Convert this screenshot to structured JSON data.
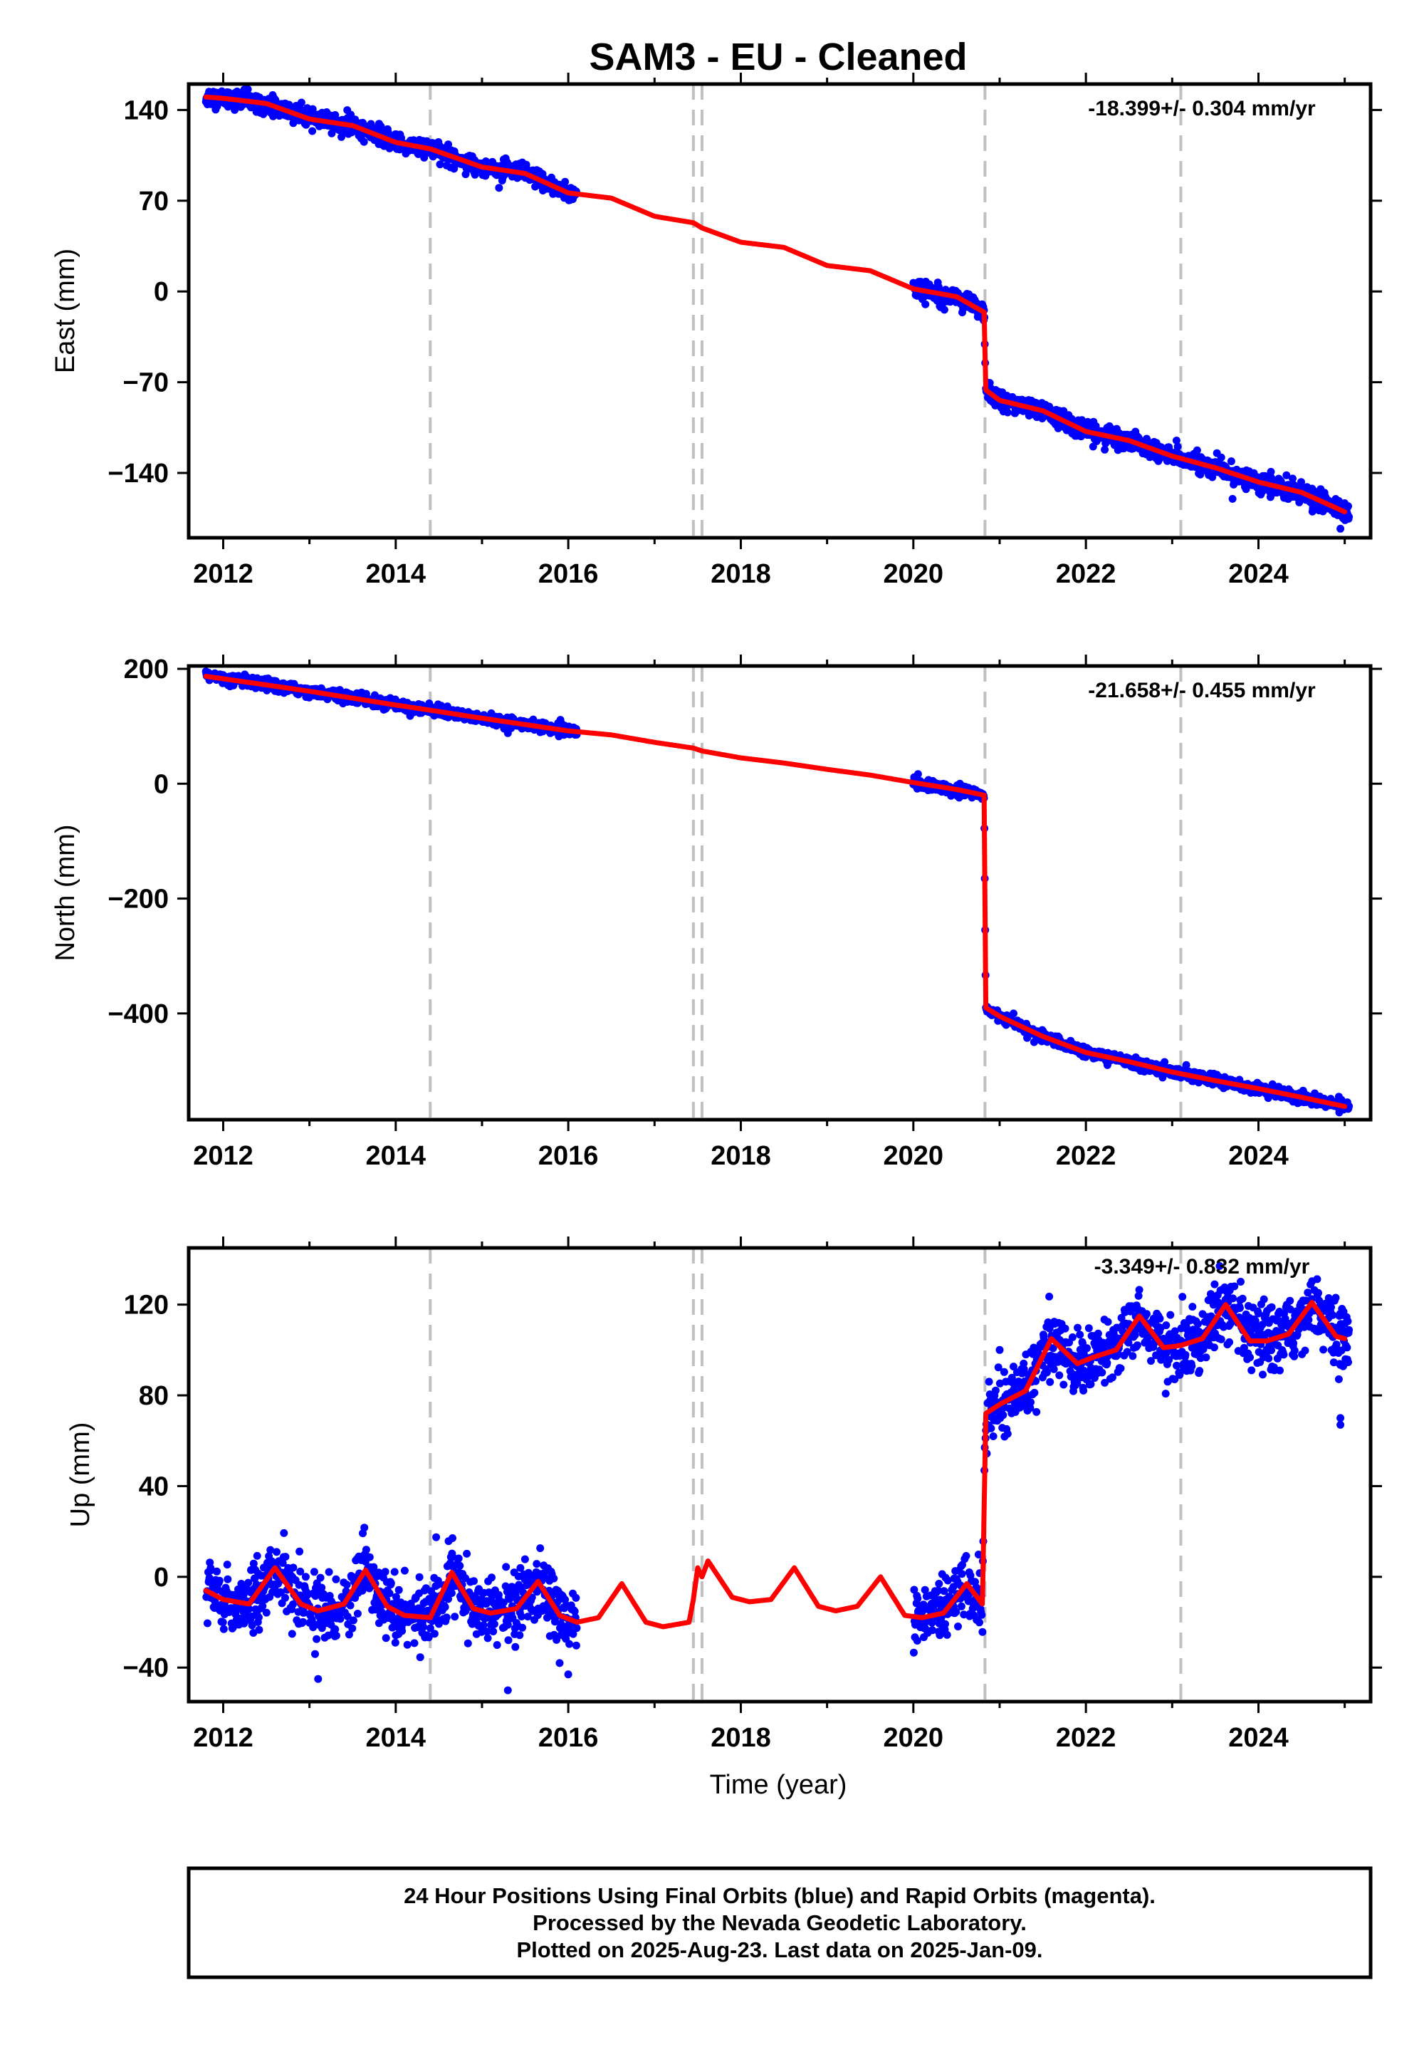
{
  "chart_data": {
    "type": "scatter",
    "title": "SAM3  - EU - Cleaned",
    "xlabel": "Time (year)",
    "xlim": [
      2011.6,
      2025.3
    ],
    "xticks": [
      2012,
      2014,
      2016,
      2018,
      2020,
      2022,
      2024
    ],
    "xtick_labels": [
      "2012",
      "2014",
      "2016",
      "2018",
      "2020",
      "2022",
      "2024"
    ],
    "grid": false,
    "event_lines": [
      2014.4,
      2017.45,
      2017.55,
      2020.83,
      2023.1
    ],
    "colors": {
      "points": "#0000ff",
      "model": "#ff0000",
      "event_lines": "#c0c0c0",
      "frame": "#000000"
    },
    "series_roles": {
      "points": "24 hour daily positions (blue)",
      "model": "model fit (red)"
    },
    "panels": [
      {
        "ylabel": "East (mm)",
        "ylim": [
          -190,
          160
        ],
        "yticks": [
          140,
          70,
          0,
          -70,
          -140
        ],
        "ytick_labels": [
          "140",
          "70",
          "0",
          "−70",
          "−140"
        ],
        "rate": "-18.399+/- 0.304 mm/yr",
        "observed_segments": [
          [
            2011.8,
            2016.1
          ],
          [
            2020.0,
            2025.05
          ]
        ],
        "model": {
          "x": [
            2011.8,
            2012.0,
            2012.5,
            2013.0,
            2013.5,
            2014.0,
            2014.4,
            2015.0,
            2015.5,
            2016.0,
            2016.5,
            2017.0,
            2017.45,
            2017.55,
            2018.0,
            2018.5,
            2019.0,
            2019.5,
            2020.0,
            2020.5,
            2020.82,
            2020.84,
            2021.0,
            2021.5,
            2022.0,
            2022.5,
            2023.0,
            2023.5,
            2024.0,
            2024.5,
            2025.0
          ],
          "y": [
            150,
            149,
            145,
            133,
            128,
            115,
            110,
            96,
            91,
            76,
            72,
            58,
            53,
            49,
            38,
            34,
            20,
            16,
            2,
            -4,
            -16,
            -76,
            -84,
            -92,
            -108,
            -115,
            -127,
            -136,
            -147,
            -155,
            -170
          ]
        },
        "scatter_sigma": 3.5,
        "outliers": [
          [
            2020.95,
            -88
          ],
          [
            2023.7,
            -160
          ],
          [
            2024.95,
            -183
          ],
          [
            2023.05,
            -115
          ],
          [
            2014.9,
            102
          ]
        ]
      },
      {
        "ylabel": "North (mm)",
        "ylim": [
          -585,
          205
        ],
        "yticks": [
          200,
          0,
          -200,
          -400
        ],
        "ytick_labels": [
          "200",
          "0",
          "−200",
          "−400"
        ],
        "rate": "-21.658+/- 0.455 mm/yr",
        "observed_segments": [
          [
            2011.8,
            2016.1
          ],
          [
            2020.0,
            2025.05
          ]
        ],
        "model": {
          "x": [
            2011.8,
            2012.5,
            2013.0,
            2014.0,
            2014.4,
            2015.0,
            2016.0,
            2016.5,
            2017.0,
            2017.45,
            2017.55,
            2018.0,
            2018.5,
            2019.0,
            2019.5,
            2020.0,
            2020.5,
            2020.82,
            2020.84,
            2021.0,
            2021.5,
            2022.0,
            2022.5,
            2023.0,
            2023.5,
            2024.0,
            2024.5,
            2025.0
          ],
          "y": [
            187,
            172,
            161,
            137,
            128,
            114,
            92,
            85,
            72,
            62,
            57,
            45,
            36,
            25,
            15,
            2,
            -10,
            -20,
            -390,
            -405,
            -440,
            -468,
            -484,
            -502,
            -517,
            -531,
            -546,
            -562
          ]
        },
        "scatter_sigma": 4.5,
        "outliers": [
          [
            2021.4,
            -450
          ],
          [
            2024.95,
            -560
          ],
          [
            2015.3,
            88
          ]
        ]
      },
      {
        "ylabel": "Up (mm)",
        "ylim": [
          -55,
          145
        ],
        "yticks": [
          120,
          80,
          40,
          0,
          -40
        ],
        "ytick_labels": [
          "120",
          "80",
          "40",
          "0",
          "−40"
        ],
        "rate": "-3.349+/- 0.832 mm/yr",
        "observed_segments": [
          [
            2011.8,
            2016.1
          ],
          [
            2020.0,
            2025.05
          ]
        ],
        "model": {
          "x": [
            2011.8,
            2012.0,
            2012.3,
            2012.6,
            2012.9,
            2013.1,
            2013.4,
            2013.65,
            2013.9,
            2014.1,
            2014.4,
            2014.65,
            2014.9,
            2015.1,
            2015.4,
            2015.65,
            2015.9,
            2016.1,
            2016.35,
            2016.62,
            2016.9,
            2017.1,
            2017.4,
            2017.45,
            2017.5,
            2017.55,
            2017.62,
            2017.9,
            2018.1,
            2018.35,
            2018.62,
            2018.9,
            2019.1,
            2019.35,
            2019.62,
            2019.9,
            2020.1,
            2020.35,
            2020.62,
            2020.8,
            2020.84,
            2021.0,
            2021.3,
            2021.6,
            2021.9,
            2022.1,
            2022.35,
            2022.62,
            2022.9,
            2023.1,
            2023.35,
            2023.62,
            2023.9,
            2024.1,
            2024.35,
            2024.62,
            2024.9,
            2025.0
          ],
          "y": [
            -6,
            -10,
            -12,
            4,
            -12,
            -15,
            -12,
            3,
            -13,
            -17,
            -18,
            2,
            -14,
            -16,
            -14,
            -2,
            -17,
            -20,
            -18,
            -3,
            -20,
            -22,
            -20,
            -10,
            4,
            0,
            7,
            -9,
            -11,
            -10,
            4,
            -13,
            -15,
            -13,
            0,
            -17,
            -18,
            -16,
            -3,
            -12,
            72,
            76,
            82,
            105,
            94,
            97,
            100,
            115,
            101,
            102,
            105,
            120,
            104,
            104,
            107,
            121,
            106,
            105
          ]
        },
        "scatter_sigma": 7,
        "outliers": [
          [
            2015.3,
            -50
          ],
          [
            2016.0,
            -43
          ],
          [
            2015.9,
            -38
          ],
          [
            2024.95,
            70
          ],
          [
            2024.95,
            67
          ],
          [
            2023.55,
            137
          ],
          [
            2013.1,
            -45
          ],
          [
            2021.0,
            100
          ]
        ]
      }
    ],
    "footer_lines": [
      "24 Hour Positions Using Final Orbits (blue) and Rapid Orbits (magenta).",
      "Processed by the Nevada Geodetic Laboratory.",
      "Plotted on 2025-Aug-23. Last data on 2025-Jan-09."
    ]
  }
}
